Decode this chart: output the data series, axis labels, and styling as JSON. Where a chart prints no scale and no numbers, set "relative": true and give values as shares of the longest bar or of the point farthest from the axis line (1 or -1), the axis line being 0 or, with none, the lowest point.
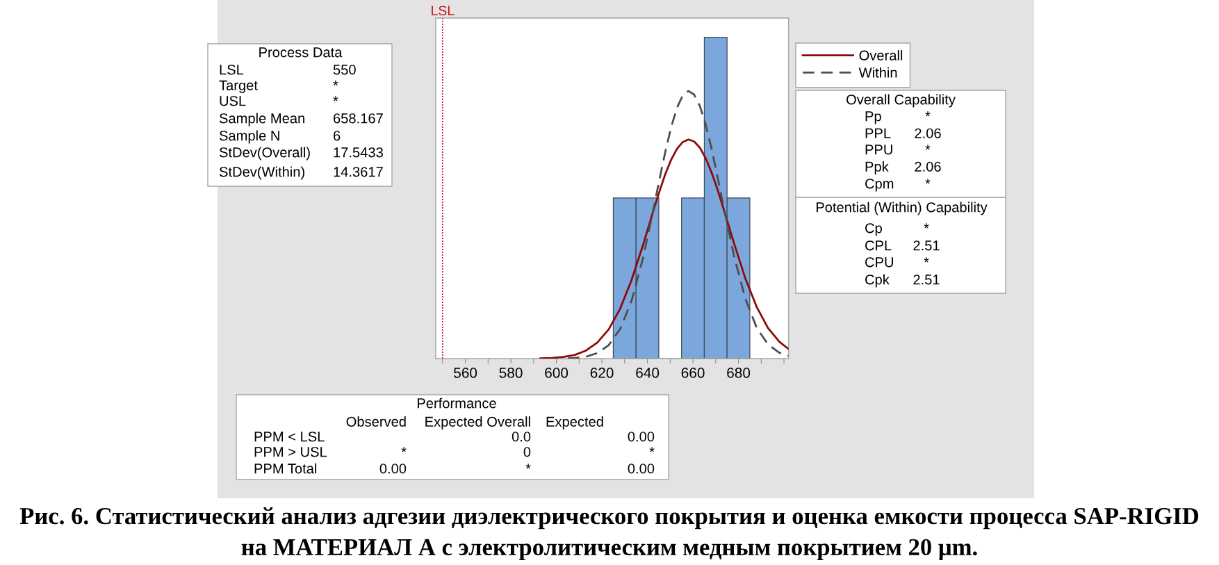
{
  "chart_data": {
    "type": "histogram",
    "relative": true,
    "bins": [
      625,
      635,
      645,
      655,
      665,
      675,
      685
    ],
    "values": [
      0.5,
      0.5,
      0,
      0.5,
      1,
      0.5
    ],
    "color": "#7ba7dc",
    "series": [
      {
        "name": "Overall",
        "type": "line",
        "color": "#8b0a0a",
        "line_style": "solid",
        "x": [
          593,
          598,
          603,
          608,
          613,
          618,
          623,
          628,
          633,
          638,
          643,
          645.5,
          648,
          650.5,
          653,
          655.5,
          658,
          660.5,
          663,
          665.5,
          668,
          670.5,
          673,
          678,
          683,
          688,
          693,
          698,
          702
        ],
        "values": [
          0.001,
          0.002,
          0.005,
          0.011,
          0.025,
          0.05,
          0.091,
          0.155,
          0.244,
          0.352,
          0.469,
          0.525,
          0.577,
          0.62,
          0.653,
          0.674,
          0.682,
          0.676,
          0.657,
          0.625,
          0.583,
          0.533,
          0.477,
          0.36,
          0.25,
          0.161,
          0.095,
          0.052,
          0.03
        ]
      },
      {
        "name": "Within",
        "type": "line",
        "color": "#4d4d4d",
        "line_style": "dashed",
        "x": [
          605,
          608,
          613,
          618,
          623,
          628,
          633,
          638,
          643,
          645.5,
          648,
          650.5,
          653,
          655.5,
          658,
          660.5,
          663,
          665.5,
          668,
          670.5,
          673,
          678,
          683,
          688,
          693,
          698,
          702
        ],
        "values": [
          0.001,
          0.002,
          0.006,
          0.017,
          0.042,
          0.092,
          0.179,
          0.311,
          0.477,
          0.565,
          0.648,
          0.722,
          0.781,
          0.819,
          0.833,
          0.822,
          0.787,
          0.731,
          0.659,
          0.576,
          0.489,
          0.321,
          0.187,
          0.096,
          0.044,
          0.018,
          0.008
        ]
      }
    ],
    "xlim": [
      547,
      702
    ],
    "xticks": [
      {
        "value": 550,
        "label": null
      },
      560,
      {
        "value": 570,
        "label": null
      },
      580,
      {
        "value": 590,
        "label": null
      },
      600,
      {
        "value": 610,
        "label": null
      },
      620,
      {
        "value": 630,
        "label": null
      },
      640,
      {
        "value": 650,
        "label": null
      },
      660,
      {
        "value": 670,
        "label": null
      },
      680,
      {
        "value": 690,
        "label": null
      },
      {
        "value": 700,
        "label": null
      }
    ],
    "tick_labels": "x",
    "legend": "top right",
    "ref_lines": [
      {
        "axis": "x",
        "value": 550,
        "label": "LSL",
        "color": "#c8161d",
        "line_style": "dotted"
      }
    ],
    "annotations": [
      "Process Data\nLSL\t550\nTarget\t*\nUSL\t*\nSample Mean\t658.167\nSample N\t6\nStDev(Overall)\t17.5433\nStDev(Within)\t14.3617",
      "Overall Capability\nPp\t*\nPPL\t2.06\nPPU\t*\nPpk\t2.06\nCpm\t*",
      "Potential (Within) Capability\nCp\t*\nCPL\t2.51\nCPU\t*\nCpk\t2.51",
      "Performance\n\tObserved\tExpected Overall\tExpected\nPPM < LSL\t\t0.0\t0.00\nPPM > USL\t*\t0\t*\nPPM Total\t0.00\t*\t0.00",
      "Рис. 6. Статистический анализ адгезии диэлектрического покрытия и оценка емкости процесса SAP-RIGID\nна МАТЕРИАЛ А с электролитическим медным покрытием 20 μm."
    ]
  }
}
